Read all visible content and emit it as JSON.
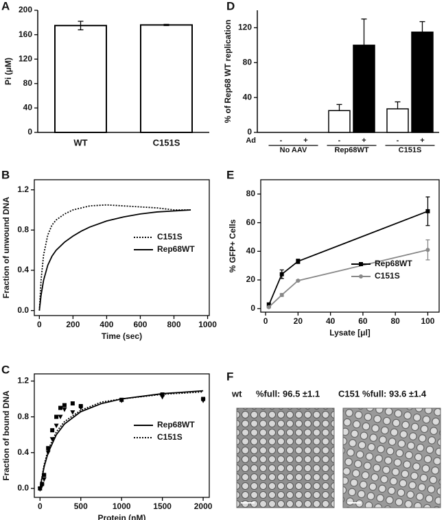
{
  "chart_data": [
    {
      "type": "bar",
      "panel": "A",
      "ylabel": "Pi (μM)",
      "categories": [
        "WT",
        "C151S"
      ],
      "values": [
        175,
        176
      ],
      "errors": [
        7,
        1
      ],
      "color": "#ffffff",
      "ylim": [
        0,
        200
      ],
      "yticks": [
        0,
        40,
        80,
        120,
        160,
        200
      ]
    },
    {
      "type": "line",
      "panel": "B",
      "xlabel": "Time (sec)",
      "ylabel": "Fraction of unwound DNA",
      "x": [
        0,
        10,
        25,
        50,
        75,
        100,
        150,
        200,
        250,
        300,
        400,
        500,
        600,
        700,
        800,
        900
      ],
      "series": [
        {
          "name": "C151S",
          "color": "#000000",
          "linestyle": "dotted",
          "values": [
            0,
            0.3,
            0.55,
            0.75,
            0.85,
            0.9,
            0.96,
            1.0,
            1.02,
            1.04,
            1.05,
            1.04,
            1.03,
            1.02,
            1.0,
            1.0
          ]
        },
        {
          "name": "Rep68WT",
          "color": "#000000",
          "linestyle": "solid",
          "values": [
            0,
            0.15,
            0.3,
            0.45,
            0.54,
            0.6,
            0.68,
            0.74,
            0.79,
            0.83,
            0.89,
            0.93,
            0.96,
            0.98,
            0.99,
            1.0
          ]
        }
      ],
      "xlim": [
        -30,
        1010
      ],
      "ylim": [
        -0.05,
        1.3
      ],
      "xticks": [
        0,
        200,
        400,
        600,
        800,
        1000
      ],
      "yticks": [
        {
          "value": 0,
          "label": "0.0"
        },
        0.4,
        0.8,
        1.2
      ],
      "legend": "center right"
    },
    {
      "type": "scatter",
      "panel": "C",
      "xlabel": "Protein (nM)",
      "ylabel": "Fraction of bound DNA",
      "series": [
        {
          "name": "Rep68WT",
          "color": "#000000",
          "linestyle": "solid",
          "marker": "square",
          "x": [
            0,
            25,
            50,
            100,
            150,
            200,
            250,
            300,
            400,
            500,
            1000,
            1500,
            2000
          ],
          "values": [
            0,
            0.05,
            0.15,
            0.45,
            0.65,
            0.8,
            0.9,
            0.93,
            0.95,
            0.92,
            0.99,
            1.05,
            1.0
          ],
          "fit": {
            "x": [
              0,
              50,
              100,
              200,
              300,
              500,
              750,
              1000,
              1500,
              2000
            ],
            "values": [
              0,
              0.24,
              0.4,
              0.6,
              0.72,
              0.857,
              0.947,
              1.0,
              1.059,
              1.091
            ]
          }
        },
        {
          "name": "C151S",
          "color": "#000000",
          "linestyle": "dotted",
          "marker": "triangle",
          "x": [
            0,
            25,
            50,
            100,
            150,
            200,
            250,
            300,
            400,
            500,
            1000,
            1500,
            2000
          ],
          "values": [
            -0.01,
            0.03,
            0.1,
            0.4,
            0.55,
            0.7,
            0.8,
            0.88,
            0.85,
            0.9,
            0.98,
            1.02,
            0.98
          ],
          "fit": {
            "x": [
              0,
              50,
              100,
              200,
              300,
              500,
              750,
              1000,
              1500,
              2000
            ],
            "values": [
              0,
              0.265,
              0.433,
              0.632,
              0.747,
              0.873,
              0.964,
              1.0,
              1.051,
              1.079
            ]
          }
        }
      ],
      "xlim": [
        -70,
        2075
      ],
      "ylim": [
        -0.1,
        1.28
      ],
      "xticks": [
        0,
        500,
        1000,
        1500,
        2000
      ],
      "yticks": [
        {
          "value": 0,
          "label": "0.0"
        },
        0.4,
        0.8,
        1.2
      ],
      "legend": "center right"
    },
    {
      "type": "grouped-bar",
      "panel": "D",
      "ylabel": "% of Rep68 WT replication",
      "row_label": "Ad",
      "categories": [
        "No AAV",
        "Rep68WT",
        "C151S"
      ],
      "series": [
        {
          "name": "-",
          "color": "#ffffff",
          "values": [
            0,
            25,
            27
          ],
          "errors": [
            0,
            7,
            8
          ]
        },
        {
          "name": "+",
          "color": "#000000",
          "values": [
            0,
            100,
            115
          ],
          "errors": [
            0,
            30,
            12
          ]
        }
      ],
      "ylim": [
        0,
        140
      ],
      "yticks": [
        0,
        40,
        80,
        120
      ]
    },
    {
      "type": "errorline",
      "panel": "E",
      "xlabel": "Lysate [μl]",
      "ylabel": "% GFP+ Cells",
      "x": [
        2,
        10,
        20,
        100
      ],
      "series": [
        {
          "name": "Rep68WT",
          "color": "#000000",
          "marker": "square",
          "values": [
            2.5,
            24,
            33,
            68
          ],
          "errors": [
            1.5,
            3,
            1.5,
            10
          ]
        },
        {
          "name": "C151S",
          "color": "#888888",
          "marker": "circle",
          "values": [
            1,
            9.5,
            19.5,
            41
          ],
          "errors": [
            0.5,
            1,
            0.5,
            7
          ]
        }
      ],
      "xlim": [
        -3,
        107
      ],
      "ylim": [
        -2.5,
        90
      ],
      "xticks": [
        0,
        20,
        40,
        60,
        80,
        100
      ],
      "yticks": [
        0,
        20,
        40,
        60,
        80
      ],
      "legend": "lower right"
    },
    {
      "type": "image",
      "panel": "F",
      "images": [
        {
          "label": "wt",
          "caption": "%full: 96.5 ±1.1"
        },
        {
          "label": "C151",
          "caption": "%full: 93.6 ±1.4"
        }
      ]
    }
  ]
}
